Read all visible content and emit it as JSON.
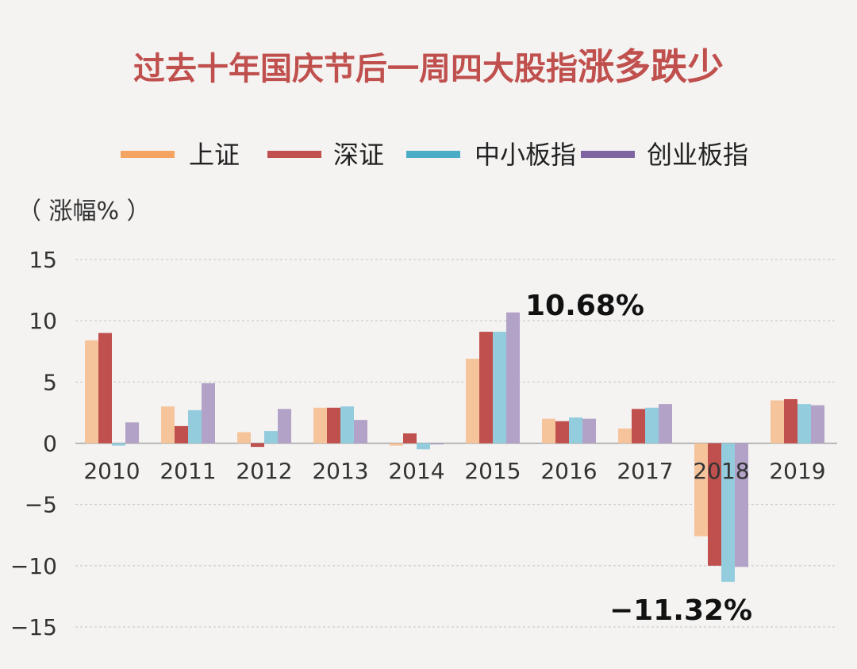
{
  "chart_data": {
    "type": "bar",
    "title": "过去十年国庆节后一周四大股指",
    "title_emphasis": "涨多跌少",
    "ylabel": "（ 涨幅% ）",
    "categories": [
      "2010",
      "2011",
      "2012",
      "2013",
      "2014",
      "2015",
      "2016",
      "2017",
      "2018",
      "2019"
    ],
    "y_ticks": [
      "15",
      "10",
      "5",
      "0",
      "−5",
      "−10",
      "−15"
    ],
    "ylim": [
      -15,
      15
    ],
    "grid": true,
    "legend_position": "top",
    "series": [
      {
        "name": "上证",
        "color": "#f6c49b",
        "values": [
          8.4,
          3.0,
          0.9,
          2.9,
          -0.2,
          6.9,
          2.0,
          1.2,
          -7.6,
          3.5
        ]
      },
      {
        "name": "深证",
        "color": "#c0504d",
        "values": [
          9.0,
          1.4,
          -0.3,
          2.9,
          0.8,
          9.1,
          1.8,
          2.8,
          -10.0,
          3.6
        ]
      },
      {
        "name": "中小板指",
        "color": "#93cddd",
        "values": [
          -0.2,
          2.7,
          1.0,
          3.0,
          -0.5,
          9.1,
          2.1,
          2.9,
          -11.32,
          3.2
        ]
      },
      {
        "name": "创业板指",
        "color": "#b2a2c7",
        "values": [
          1.7,
          4.9,
          2.8,
          1.9,
          -0.1,
          10.68,
          2.0,
          3.2,
          -10.1,
          3.1
        ]
      }
    ],
    "legend_swatch_colors": [
      "#f4a460",
      "#c0504d",
      "#4bacc6",
      "#8064a2"
    ],
    "annotations": [
      {
        "text": "10.68%",
        "category": "2015",
        "series": "创业板指"
      },
      {
        "text": "−11.32%",
        "category": "2018",
        "series": "中小板指"
      }
    ]
  }
}
